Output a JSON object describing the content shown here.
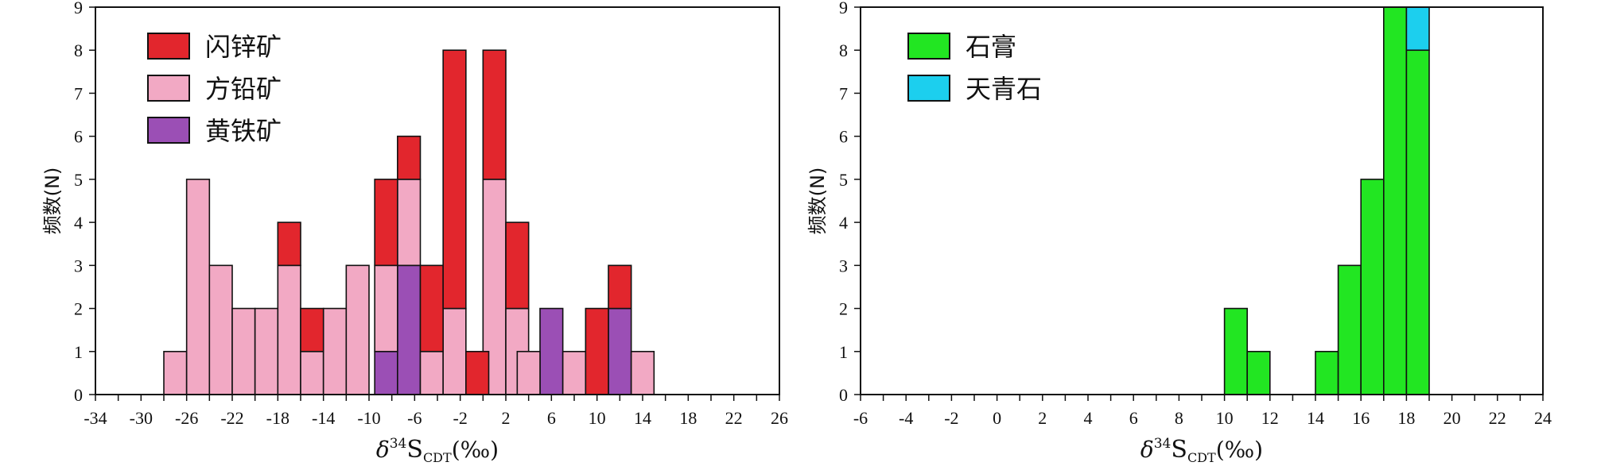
{
  "chart_data": [
    {
      "type": "bar",
      "stacked": true,
      "bin_width": 2,
      "xlim": [
        -34,
        26
      ],
      "ylim": [
        0,
        9
      ],
      "x_ticks": [
        "-34",
        "-30",
        "-26",
        "-22",
        "-18",
        "-14",
        "-10",
        "-6",
        "-2",
        "2",
        "6",
        "10",
        "14",
        "18",
        "22",
        "26"
      ],
      "y_ticks": [
        "0",
        "1",
        "2",
        "3",
        "4",
        "5",
        "6",
        "7",
        "8",
        "9"
      ],
      "ylabel": "频数(N)",
      "xlabel": {
        "delta": "δ",
        "sup": "34",
        "main": "S",
        "sub": "CDT",
        "unit": "(‰)"
      },
      "legend_position": "top-left",
      "series": [
        {
          "name": "黄铁矿",
          "color": "#9b4fb5",
          "bins": [
            {
              "x0": -9.5,
              "v": 1
            },
            {
              "x0": -7.5,
              "v": 3
            },
            {
              "x0": 5,
              "v": 2
            },
            {
              "x0": 11,
              "v": 2
            }
          ]
        },
        {
          "name": "方铅矿",
          "color": "#f2a9c4",
          "bins": [
            {
              "x0": -28,
              "v": 1
            },
            {
              "x0": -26,
              "v": 5
            },
            {
              "x0": -24,
              "v": 3
            },
            {
              "x0": -22,
              "v": 2
            },
            {
              "x0": -20,
              "v": 2
            },
            {
              "x0": -18,
              "v": 3
            },
            {
              "x0": -16,
              "v": 1
            },
            {
              "x0": -14,
              "v": 2
            },
            {
              "x0": -12,
              "v": 3
            },
            {
              "x0": -9.5,
              "v": 2
            },
            {
              "x0": -7.5,
              "v": 2
            },
            {
              "x0": -5.5,
              "v": 1
            },
            {
              "x0": -3.5,
              "v": 2
            },
            {
              "x0": 0,
              "v": 5
            },
            {
              "x0": 2,
              "v": 2
            },
            {
              "x0": 3,
              "v": 1
            },
            {
              "x0": 7,
              "v": 1
            },
            {
              "x0": 13,
              "v": 1
            }
          ]
        },
        {
          "name": "闪锌矿",
          "color": "#e2262d",
          "bins": [
            {
              "x0": -18,
              "v": 1
            },
            {
              "x0": -16,
              "v": 1
            },
            {
              "x0": -9.5,
              "v": 2
            },
            {
              "x0": -7.5,
              "v": 1
            },
            {
              "x0": -5.5,
              "v": 2
            },
            {
              "x0": -3.5,
              "v": 6
            },
            {
              "x0": -1.5,
              "v": 1
            },
            {
              "x0": 0,
              "v": 3
            },
            {
              "x0": 2,
              "v": 2
            },
            {
              "x0": 9,
              "v": 2
            },
            {
              "x0": 11,
              "v": 1
            }
          ]
        }
      ],
      "legend_order": [
        "闪锌矿",
        "方铅矿",
        "黄铁矿"
      ]
    },
    {
      "type": "bar",
      "stacked": true,
      "bin_width": 1,
      "xlim": [
        -6,
        24
      ],
      "ylim": [
        0,
        9
      ],
      "x_ticks": [
        "-6",
        "-4",
        "-2",
        "0",
        "2",
        "4",
        "6",
        "8",
        "10",
        "12",
        "14",
        "16",
        "18",
        "20",
        "22",
        "24"
      ],
      "y_ticks": [
        "0",
        "1",
        "2",
        "3",
        "4",
        "5",
        "6",
        "7",
        "8",
        "9"
      ],
      "ylabel": "频数(N)",
      "xlabel": {
        "delta": "δ",
        "sup": "34",
        "main": "S",
        "sub": "CDT",
        "unit": "(‰)"
      },
      "legend_position": "top-left",
      "series": [
        {
          "name": "石膏",
          "color": "#22e622",
          "bins": [
            {
              "x0": 10,
              "v": 2
            },
            {
              "x0": 11,
              "v": 1
            },
            {
              "x0": 14,
              "v": 1
            },
            {
              "x0": 15,
              "v": 3
            },
            {
              "x0": 16,
              "v": 5
            },
            {
              "x0": 17,
              "v": 9
            },
            {
              "x0": 18,
              "v": 8
            }
          ]
        },
        {
          "name": "天青石",
          "color": "#1ccfee",
          "bins": [
            {
              "x0": 18,
              "v": 1
            }
          ]
        }
      ],
      "legend_order": [
        "石膏",
        "天青石"
      ]
    }
  ]
}
